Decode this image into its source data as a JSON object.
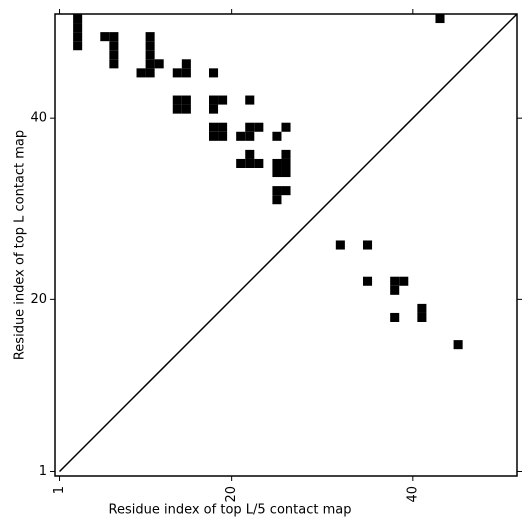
{
  "chart_data": {
    "type": "contact-map",
    "x_label": "Residue index of top L/5 contact map",
    "y_label": "Residue index of top L contact map",
    "xlim": [
      0.5,
      51.5
    ],
    "ylim": [
      0.5,
      51.5
    ],
    "xticks": [
      1,
      20,
      40
    ],
    "yticks": [
      1,
      20,
      40
    ],
    "color": "#000000",
    "upper": {
      "x": [
        3,
        3,
        3,
        3,
        6,
        7,
        7,
        7,
        7,
        10,
        11,
        11,
        11,
        11,
        11,
        12,
        14,
        15,
        15,
        18,
        14,
        15,
        14,
        15,
        18,
        19,
        18,
        22,
        18,
        19,
        18,
        19,
        21,
        22,
        22,
        23,
        25,
        26,
        22,
        26,
        21,
        22,
        23,
        25,
        26,
        25,
        26,
        25,
        26,
        25,
        43
      ],
      "y": [
        48,
        49,
        50,
        51,
        49,
        49,
        48,
        47,
        46,
        45,
        45,
        46,
        47,
        48,
        49,
        46,
        45,
        45,
        46,
        45,
        41,
        41,
        42,
        42,
        42,
        42,
        41,
        42,
        38,
        38,
        39,
        39,
        38,
        38,
        39,
        39,
        38,
        39,
        36,
        36,
        35,
        35,
        35,
        35,
        35,
        34,
        34,
        32,
        32,
        31,
        51
      ]
    },
    "lower": {
      "x": [
        32,
        35,
        35,
        38,
        39,
        38,
        38,
        41,
        41,
        45
      ],
      "y": [
        26,
        26,
        22,
        22,
        22,
        21,
        18,
        19,
        18,
        15
      ]
    }
  }
}
